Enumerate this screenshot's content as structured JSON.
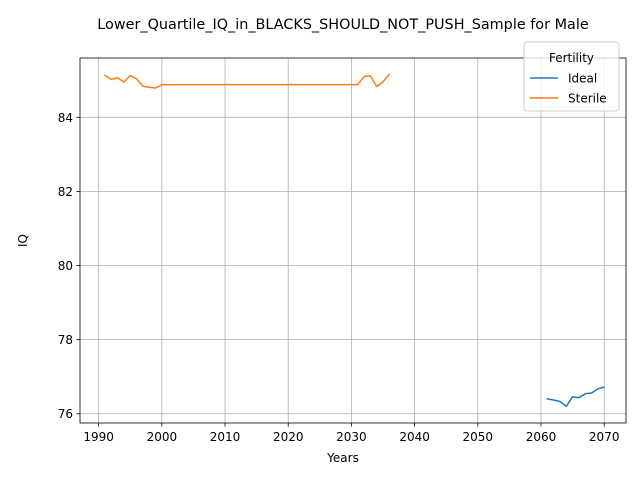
{
  "chart_data": {
    "type": "line",
    "title": "Lower_Quartile_IQ_in_BLACKS_SHOULD_NOT_PUSH_Sample for Male",
    "xlabel": "Years",
    "ylabel": "IQ",
    "xlim": [
      1987.05,
      2073.45
    ],
    "ylim": [
      75.75,
      85.6
    ],
    "xticks": [
      1990,
      2000,
      2010,
      2020,
      2030,
      2040,
      2050,
      2060,
      2070
    ],
    "yticks": [
      76,
      78,
      80,
      82,
      84
    ],
    "grid": true,
    "legend": {
      "title": "Fertility",
      "placement": "upper right"
    },
    "series": [
      {
        "name": "Ideal",
        "color": "#1f77b4",
        "x": [
          2061,
          2062,
          2063,
          2064,
          2065,
          2066,
          2067,
          2068,
          2069,
          2070
        ],
        "y": [
          76.4,
          76.37,
          76.33,
          76.2,
          76.46,
          76.43,
          76.54,
          76.56,
          76.67,
          76.72
        ]
      },
      {
        "name": "Sterile",
        "color": "#ff7f0e",
        "x": [
          1991,
          1992,
          1993,
          1994,
          1995,
          1996,
          1997,
          1998,
          1999,
          2000,
          2001,
          2002,
          2003,
          2004,
          2005,
          2006,
          2007,
          2008,
          2009,
          2010,
          2011,
          2012,
          2013,
          2014,
          2015,
          2016,
          2017,
          2018,
          2019,
          2020,
          2021,
          2022,
          2023,
          2024,
          2025,
          2026,
          2027,
          2028,
          2029,
          2030,
          2031,
          2032,
          2033,
          2034,
          2035,
          2036
        ],
        "y": [
          85.13,
          85.02,
          85.07,
          84.95,
          85.13,
          85.04,
          84.84,
          84.81,
          84.79,
          84.88,
          84.88,
          84.88,
          84.88,
          84.88,
          84.88,
          84.88,
          84.88,
          84.88,
          84.88,
          84.88,
          84.88,
          84.88,
          84.88,
          84.88,
          84.88,
          84.88,
          84.88,
          84.88,
          84.88,
          84.88,
          84.88,
          84.88,
          84.88,
          84.88,
          84.88,
          84.88,
          84.88,
          84.88,
          84.88,
          84.88,
          84.88,
          85.1,
          85.12,
          84.83,
          84.96,
          85.16
        ]
      }
    ]
  }
}
